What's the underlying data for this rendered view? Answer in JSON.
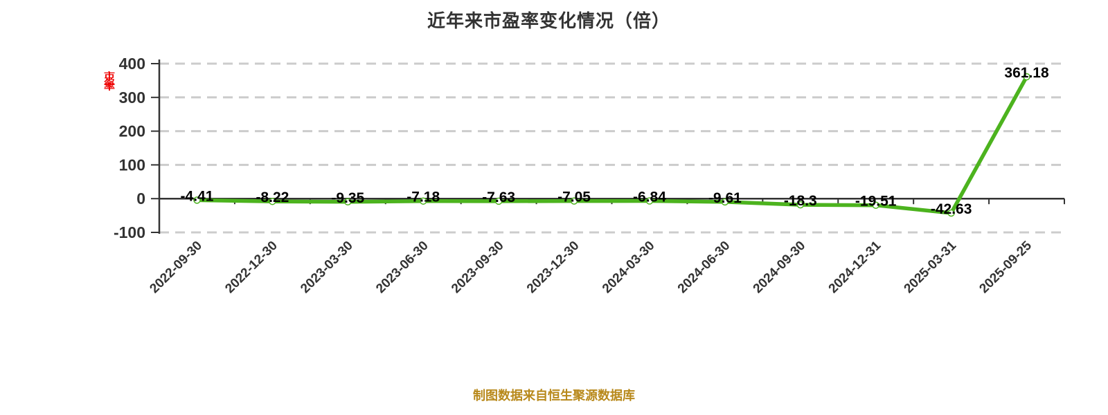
{
  "title": "近年来市盈率变化情况（倍）",
  "y_axis_name": "市盈率",
  "footer": "制图数据来自恒生聚源数据库",
  "colors": {
    "line": "#4cb31e",
    "point_fill": "#ffffff",
    "grid": "#cccccc",
    "axis": "#333333",
    "tick_label": "#333333",
    "data_label": "#000000",
    "title": "#333333",
    "footer": "#b8891b",
    "axis_name": "#ee0000"
  },
  "chart_data": {
    "type": "line",
    "title": "近年来市盈率变化情况（倍）",
    "xlabel": "",
    "ylabel": "市盈率",
    "unit": "倍",
    "categories": [
      "2022-09-30",
      "2022-12-30",
      "2023-03-30",
      "2023-06-30",
      "2023-09-30",
      "2023-12-30",
      "2024-03-30",
      "2024-06-30",
      "2024-09-30",
      "2024-12-31",
      "2025-03-31",
      "2025-09-25"
    ],
    "values": [
      -4.41,
      -8.22,
      -9.35,
      -7.18,
      -7.63,
      -7.05,
      -6.84,
      -9.61,
      -18.3,
      -19.51,
      -42.63,
      361.18
    ],
    "ylim": [
      -100,
      400
    ],
    "yticks": [
      400,
      300,
      200,
      100,
      0,
      -100
    ],
    "grid": "horizontal-dashed",
    "legend": "none",
    "marker": "white-dot",
    "data_source": "制图数据来自恒生聚源数据库"
  }
}
